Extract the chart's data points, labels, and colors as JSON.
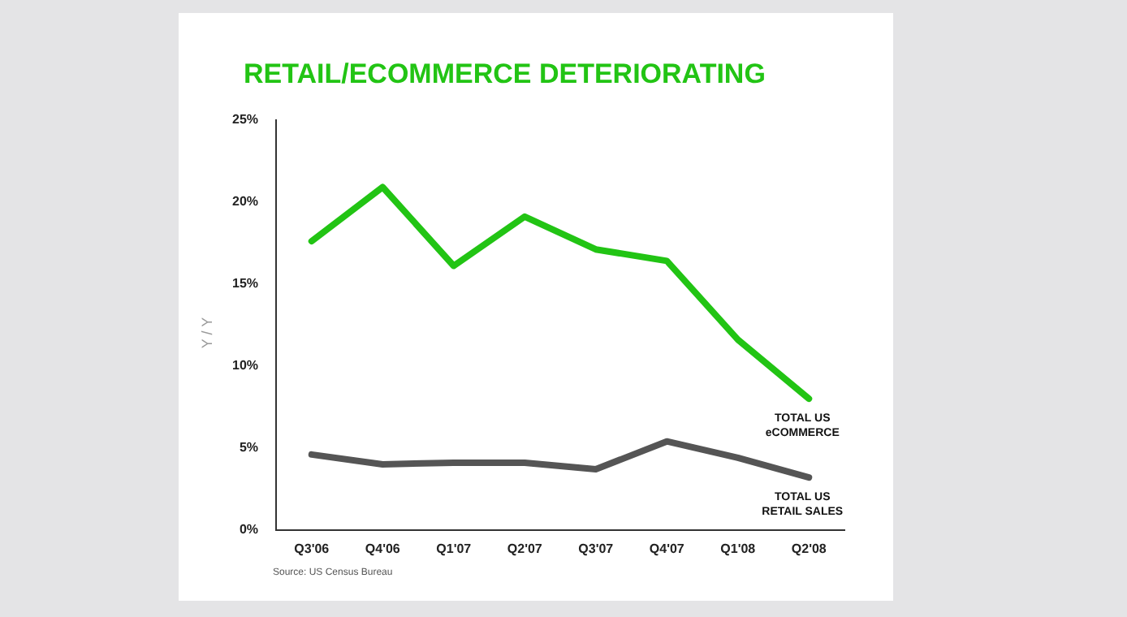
{
  "chart_data": {
    "type": "line",
    "title": "RETAIL/ECOMMERCE DETERIORATING",
    "ylabel": "Y / Y",
    "categories": [
      "Q3'06",
      "Q4'06",
      "Q1'07",
      "Q2'07",
      "Q3'07",
      "Q4'07",
      "Q1'08",
      "Q2'08"
    ],
    "series": [
      {
        "name": "TOTAL US eCOMMERCE",
        "color": "#22c414",
        "values": [
          17.6,
          20.9,
          16.1,
          19.1,
          17.1,
          16.4,
          11.6,
          8.0
        ]
      },
      {
        "name": "TOTAL US RETAIL SALES",
        "color": "#555555",
        "values": [
          4.6,
          4.0,
          4.1,
          4.1,
          3.7,
          5.4,
          4.4,
          3.2
        ]
      }
    ],
    "ylim": [
      0,
      25
    ],
    "yticks": [
      {
        "value": 0,
        "label": "0%"
      },
      {
        "value": 5,
        "label": "5%"
      },
      {
        "value": 10,
        "label": "10%"
      },
      {
        "value": 15,
        "label": "15%"
      },
      {
        "value": 20,
        "label": "20%"
      },
      {
        "value": 25,
        "label": "25%"
      }
    ],
    "grid": false,
    "legend": false,
    "marker": "none",
    "line_style": "solid",
    "annotations": [
      "Source: US Census Bureau"
    ]
  }
}
